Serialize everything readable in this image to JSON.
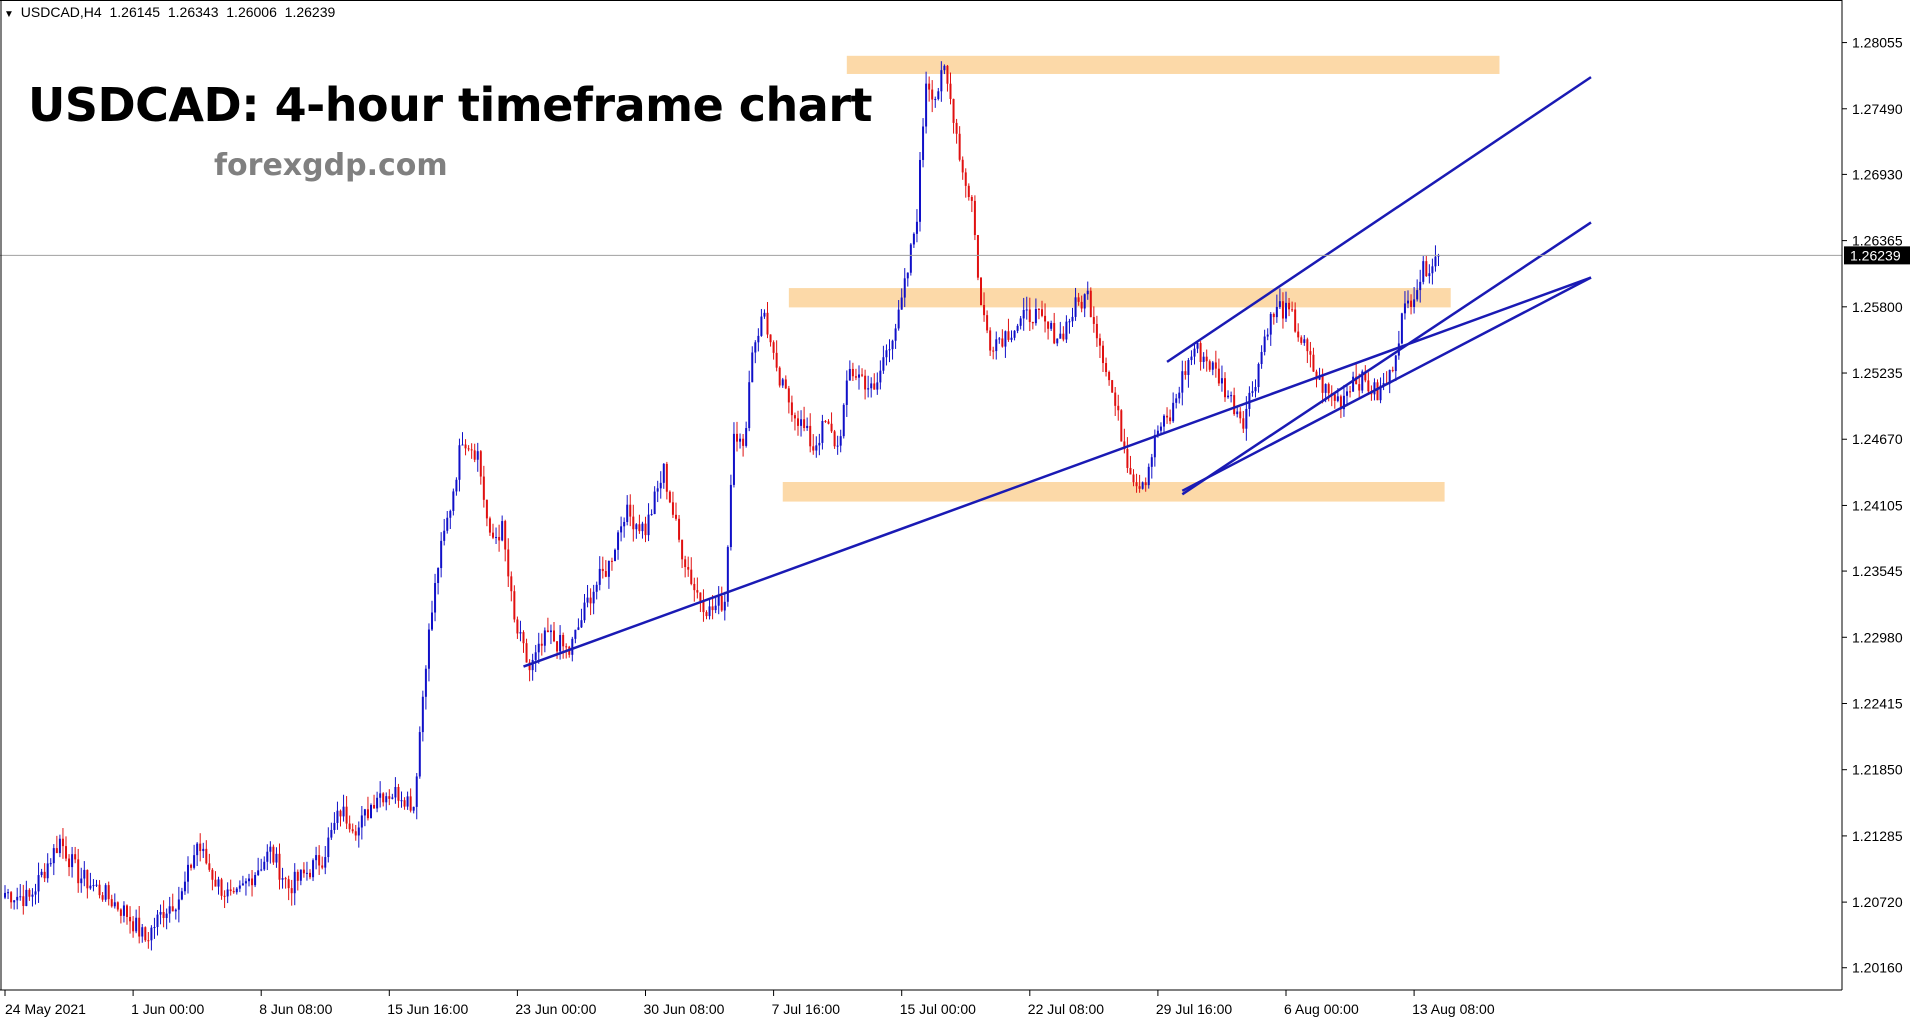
{
  "header": {
    "symbol": "USDCAD,H4",
    "open": "1.26145",
    "high": "1.26343",
    "low": "1.26006",
    "close": "1.26239"
  },
  "overlay": {
    "title": "USDCAD: 4-hour timeframe chart",
    "watermark": "forexgdp.com"
  },
  "colors": {
    "bull": "#1010c8",
    "bear": "#e01010",
    "trendline": "#1a1ab4",
    "zone": "#fcd9a8",
    "axis": "#000000",
    "price_marker_bg": "#000000",
    "price_marker_text": "#ffffff"
  },
  "chart_data": {
    "type": "candlestick",
    "title": "USDCAD: 4-hour timeframe chart",
    "current_price": 1.26239,
    "current_price_label": "1.26239",
    "y_range": [
      1.1997,
      1.2835
    ],
    "y_ticks": [
      {
        "v": 1.28055,
        "label": "1.28055"
      },
      {
        "v": 1.2749,
        "label": "1.27490"
      },
      {
        "v": 1.2693,
        "label": "1.26930"
      },
      {
        "v": 1.26365,
        "label": "1.26365"
      },
      {
        "v": 1.258,
        "label": "1.25800"
      },
      {
        "v": 1.25235,
        "label": "1.25235"
      },
      {
        "v": 1.2467,
        "label": "1.24670"
      },
      {
        "v": 1.24105,
        "label": "1.24105"
      },
      {
        "v": 1.23545,
        "label": "1.23545"
      },
      {
        "v": 1.2298,
        "label": "1.22980"
      },
      {
        "v": 1.22415,
        "label": "1.22415"
      },
      {
        "v": 1.2185,
        "label": "1.21850"
      },
      {
        "v": 1.21285,
        "label": "1.21285"
      },
      {
        "v": 1.2072,
        "label": "1.20720"
      },
      {
        "v": 1.2016,
        "label": "1.20160"
      }
    ],
    "x_ticks": [
      {
        "idx": 0,
        "label": "24 May 2021"
      },
      {
        "idx": 42,
        "label": "1 Jun 00:00"
      },
      {
        "idx": 84,
        "label": "8 Jun 08:00"
      },
      {
        "idx": 126,
        "label": "15 Jun 16:00"
      },
      {
        "idx": 168,
        "label": "23 Jun 00:00"
      },
      {
        "idx": 210,
        "label": "30 Jun 08:00"
      },
      {
        "idx": 252,
        "label": "7 Jul 16:00"
      },
      {
        "idx": 294,
        "label": "15 Jul 00:00"
      },
      {
        "idx": 336,
        "label": "22 Jul 08:00"
      },
      {
        "idx": 378,
        "label": "29 Jul 16:00"
      },
      {
        "idx": 420,
        "label": "6 Aug 00:00"
      },
      {
        "idx": 462,
        "label": "13 Aug 08:00"
      }
    ],
    "anchors": [
      [
        0,
        1.208
      ],
      [
        8,
        1.2075
      ],
      [
        18,
        1.2125
      ],
      [
        24,
        1.2095
      ],
      [
        32,
        1.208
      ],
      [
        40,
        1.2062
      ],
      [
        46,
        1.204
      ],
      [
        52,
        1.2065
      ],
      [
        58,
        1.2078
      ],
      [
        63,
        1.2122
      ],
      [
        69,
        1.209
      ],
      [
        75,
        1.2072
      ],
      [
        81,
        1.2095
      ],
      [
        87,
        1.2115
      ],
      [
        93,
        1.2085
      ],
      [
        98,
        1.2095
      ],
      [
        104,
        1.211
      ],
      [
        110,
        1.215
      ],
      [
        116,
        1.2135
      ],
      [
        122,
        1.2165
      ],
      [
        130,
        1.2165
      ],
      [
        134,
        1.2155
      ],
      [
        138,
        1.228
      ],
      [
        142,
        1.236
      ],
      [
        146,
        1.241
      ],
      [
        150,
        1.247
      ],
      [
        155,
        1.2455
      ],
      [
        159,
        1.238
      ],
      [
        163,
        1.239
      ],
      [
        167,
        1.231
      ],
      [
        172,
        1.227
      ],
      [
        178,
        1.23
      ],
      [
        185,
        1.2285
      ],
      [
        192,
        1.2335
      ],
      [
        198,
        1.236
      ],
      [
        203,
        1.2405
      ],
      [
        210,
        1.239
      ],
      [
        216,
        1.244
      ],
      [
        221,
        1.238
      ],
      [
        226,
        1.234
      ],
      [
        231,
        1.232
      ],
      [
        236,
        1.233
      ],
      [
        239,
        1.248
      ],
      [
        242,
        1.2455
      ],
      [
        245,
        1.2545
      ],
      [
        249,
        1.2575
      ],
      [
        253,
        1.252
      ],
      [
        257,
        1.25
      ],
      [
        261,
        1.248
      ],
      [
        265,
        1.246
      ],
      [
        269,
        1.248
      ],
      [
        273,
        1.246
      ],
      [
        277,
        1.2525
      ],
      [
        281,
        1.252
      ],
      [
        285,
        1.2505
      ],
      [
        289,
        1.2545
      ],
      [
        293,
        1.257
      ],
      [
        296,
        1.261
      ],
      [
        299,
        1.266
      ],
      [
        302,
        1.2775
      ],
      [
        305,
        1.276
      ],
      [
        308,
        1.278
      ],
      [
        311,
        1.2745
      ],
      [
        314,
        1.2695
      ],
      [
        317,
        1.267
      ],
      [
        320,
        1.258
      ],
      [
        323,
        1.255
      ],
      [
        327,
        1.2555
      ],
      [
        332,
        1.2565
      ],
      [
        337,
        1.2575
      ],
      [
        342,
        1.256
      ],
      [
        346,
        1.2555
      ],
      [
        351,
        1.258
      ],
      [
        355,
        1.259
      ],
      [
        360,
        1.254
      ],
      [
        364,
        1.2495
      ],
      [
        368,
        1.245
      ],
      [
        371,
        1.243
      ],
      [
        374,
        1.2435
      ],
      [
        378,
        1.2475
      ],
      [
        382,
        1.2485
      ],
      [
        386,
        1.252
      ],
      [
        390,
        1.2545
      ],
      [
        394,
        1.2535
      ],
      [
        398,
        1.252
      ],
      [
        402,
        1.25
      ],
      [
        406,
        1.2485
      ],
      [
        410,
        1.252
      ],
      [
        414,
        1.2565
      ],
      [
        418,
        1.258
      ],
      [
        422,
        1.257
      ],
      [
        426,
        1.2545
      ],
      [
        430,
        1.252
      ],
      [
        434,
        1.2505
      ],
      [
        438,
        1.25
      ],
      [
        442,
        1.252
      ],
      [
        446,
        1.2515
      ],
      [
        450,
        1.2505
      ],
      [
        454,
        1.252
      ],
      [
        458,
        1.257
      ],
      [
        462,
        1.2595
      ],
      [
        466,
        1.2615
      ],
      [
        470,
        1.26239
      ]
    ],
    "zones": [
      {
        "name": "upper-resistance-zone",
        "idx_from": 276,
        "idx_to": 490,
        "high": 1.27942,
        "low": 1.27787
      },
      {
        "name": "middle-resistance-zone",
        "idx_from": 257,
        "idx_to": 474,
        "high": 1.2596,
        "low": 1.25795
      },
      {
        "name": "lower-support-zone",
        "idx_from": 255,
        "idx_to": 472,
        "high": 1.24305,
        "low": 1.24138
      }
    ],
    "trendlines": [
      {
        "name": "long-term-support-trendline",
        "from": [
          170,
          1.2273
        ],
        "to": [
          520,
          1.2605
        ]
      },
      {
        "name": "channel-upper-trendline",
        "from": [
          381,
          1.2533
        ],
        "to": [
          520,
          1.2776
        ]
      },
      {
        "name": "channel-lower-trendline",
        "from": [
          386,
          1.242
        ],
        "to": [
          520,
          1.2652
        ]
      },
      {
        "name": "channel-base-trendline",
        "from": [
          386,
          1.2423
        ],
        "to": [
          520,
          1.2605
        ]
      }
    ]
  }
}
